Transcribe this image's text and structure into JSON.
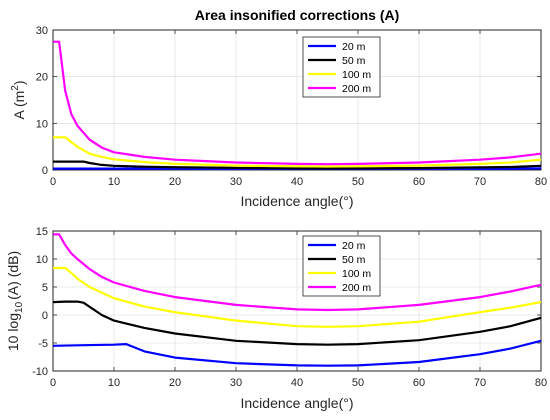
{
  "chart_data": [
    {
      "type": "line",
      "title": "Area insonified corrections (A)",
      "xlabel": "Incidence angle(°)",
      "ylabel_main": "A (m",
      "ylabel_sup": "2",
      "ylabel_tail": ")",
      "xlim": [
        0,
        80
      ],
      "ylim": [
        0,
        30
      ],
      "xticks": [
        0,
        10,
        20,
        30,
        40,
        50,
        60,
        70,
        80
      ],
      "yticks": [
        0,
        10,
        20,
        30
      ],
      "grid": true,
      "legend": "top-center",
      "series": [
        {
          "name": "20 m",
          "color": "#0000ff",
          "x": [
            0,
            5,
            10,
            20,
            30,
            40,
            50,
            60,
            70,
            80
          ],
          "y": [
            0.3,
            0.3,
            0.3,
            0.3,
            0.15,
            0.12,
            0.12,
            0.15,
            0.2,
            0.35
          ]
        },
        {
          "name": "50 m",
          "color": "#000000",
          "x": [
            0,
            2,
            4,
            5,
            6,
            8,
            10,
            15,
            20,
            30,
            40,
            45,
            50,
            60,
            70,
            75,
            80
          ],
          "y": [
            1.8,
            1.8,
            1.8,
            1.8,
            1.5,
            1.1,
            0.9,
            0.7,
            0.6,
            0.45,
            0.35,
            0.33,
            0.35,
            0.4,
            0.55,
            0.65,
            0.9
          ]
        },
        {
          "name": "100 m",
          "color": "#ffff00",
          "x": [
            0,
            1,
            2,
            3,
            4,
            6,
            8,
            10,
            15,
            20,
            30,
            40,
            45,
            50,
            60,
            70,
            75,
            80
          ],
          "y": [
            7,
            7,
            7,
            6,
            5,
            3.5,
            2.8,
            2.3,
            1.7,
            1.3,
            0.95,
            0.8,
            0.75,
            0.8,
            0.95,
            1.3,
            1.6,
            2.2
          ]
        },
        {
          "name": "200 m",
          "color": "#ff00ff",
          "x": [
            0,
            1,
            2,
            3,
            4,
            6,
            8,
            10,
            15,
            20,
            30,
            40,
            45,
            50,
            60,
            70,
            75,
            80
          ],
          "y": [
            27.5,
            27.5,
            17,
            12,
            9.5,
            6.5,
            4.8,
            3.8,
            2.8,
            2.2,
            1.6,
            1.3,
            1.25,
            1.3,
            1.6,
            2.2,
            2.7,
            3.5
          ]
        }
      ]
    },
    {
      "type": "line",
      "title": "",
      "xlabel": "Incidence angle(°)",
      "ylabel_main": "10 log",
      "ylabel_sub": "10",
      "ylabel_tail": "(A) (dB)",
      "xlim": [
        0,
        80
      ],
      "ylim": [
        -10,
        15
      ],
      "xticks": [
        0,
        10,
        20,
        30,
        40,
        50,
        60,
        70,
        80
      ],
      "yticks": [
        -10,
        -5,
        0,
        5,
        10,
        15
      ],
      "grid": true,
      "legend": "top-center",
      "series": [
        {
          "name": "20 m",
          "color": "#0000ff",
          "x": [
            0,
            5,
            10,
            12,
            15,
            20,
            30,
            40,
            45,
            50,
            60,
            70,
            75,
            80
          ],
          "y": [
            -5.5,
            -5.4,
            -5.3,
            -5.2,
            -6.5,
            -7.6,
            -8.6,
            -9.0,
            -9.05,
            -9.0,
            -8.4,
            -7.0,
            -6.0,
            -4.6
          ]
        },
        {
          "name": "50 m",
          "color": "#000000",
          "x": [
            0,
            2,
            4,
            5,
            8,
            10,
            15,
            20,
            30,
            40,
            45,
            50,
            60,
            70,
            75,
            80
          ],
          "y": [
            2.3,
            2.4,
            2.4,
            2.2,
            0,
            -1.0,
            -2.3,
            -3.3,
            -4.6,
            -5.2,
            -5.3,
            -5.2,
            -4.5,
            -3.0,
            -2.0,
            -0.5
          ]
        },
        {
          "name": "100 m",
          "color": "#ffff00",
          "x": [
            0,
            1,
            2,
            3,
            4,
            6,
            8,
            10,
            15,
            20,
            30,
            40,
            45,
            50,
            60,
            70,
            75,
            80
          ],
          "y": [
            8.4,
            8.4,
            8.4,
            7.5,
            6.5,
            5.0,
            4.0,
            3.0,
            1.5,
            0.5,
            -1.0,
            -2.0,
            -2.1,
            -2.0,
            -1.2,
            0.5,
            1.3,
            2.3
          ]
        },
        {
          "name": "200 m",
          "color": "#ff00ff",
          "x": [
            0,
            1,
            2,
            3,
            4,
            6,
            8,
            10,
            15,
            20,
            30,
            40,
            45,
            50,
            60,
            70,
            75,
            80
          ],
          "y": [
            14.4,
            14.4,
            12.5,
            11,
            10,
            8.2,
            6.8,
            5.8,
            4.3,
            3.2,
            1.8,
            1.0,
            0.9,
            1.0,
            1.8,
            3.2,
            4.2,
            5.4
          ]
        }
      ]
    }
  ]
}
